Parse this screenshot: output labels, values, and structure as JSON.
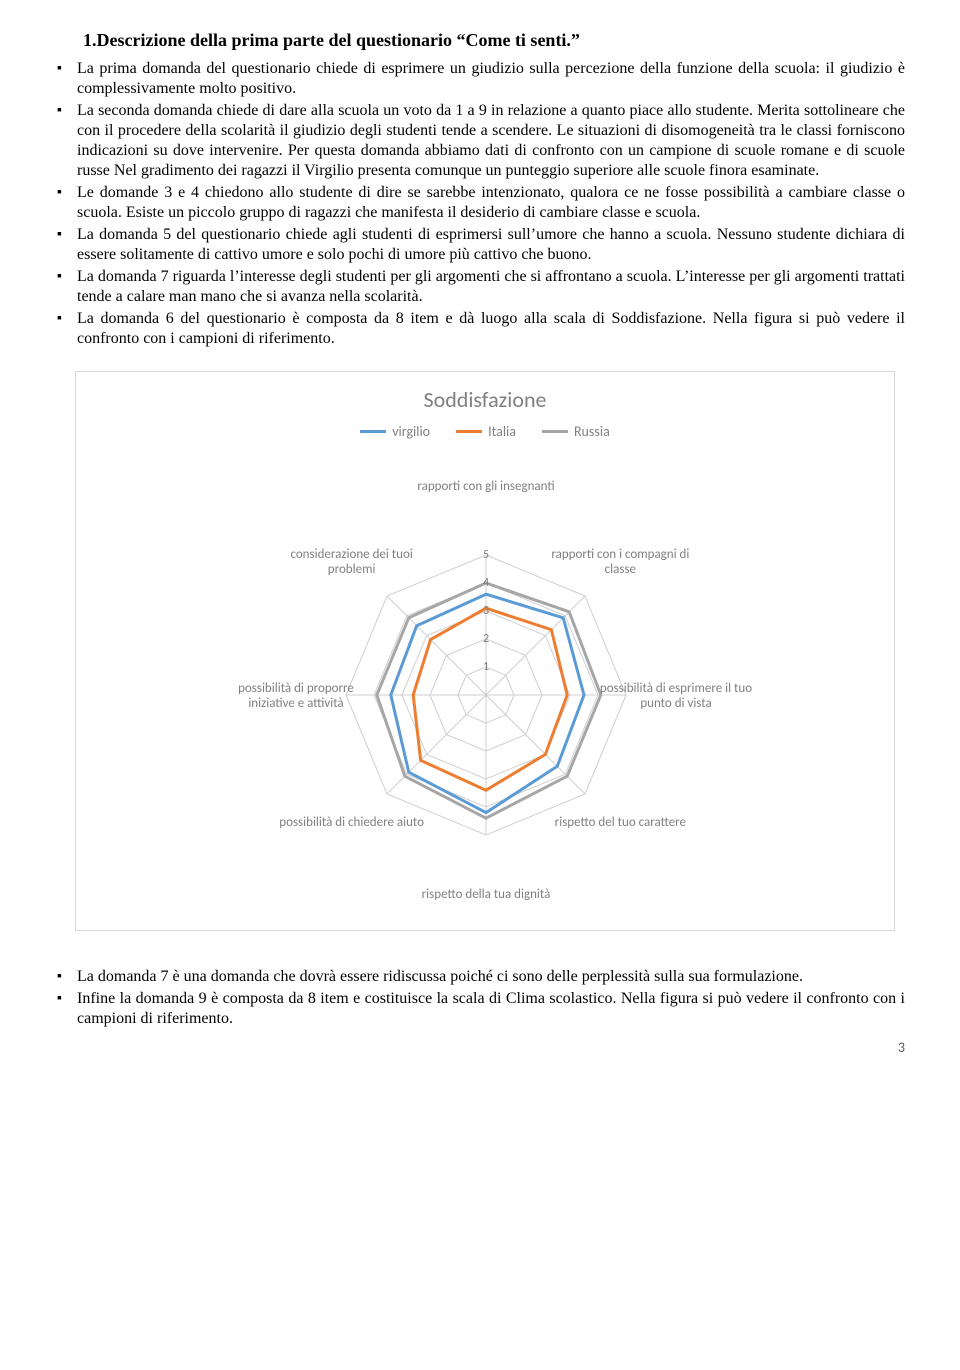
{
  "heading": "1.Descrizione della prima parte del questionario “Come ti senti.”",
  "bullets_top": [
    "La prima domanda del questionario chiede di esprimere un giudizio sulla percezione della funzione della scuola: il giudizio è complessivamente molto positivo.",
    "La seconda domanda chiede di dare alla scuola un voto da 1 a 9 in relazione a quanto piace allo studente. Merita sottolineare che con il procedere della scolarità il giudizio degli studenti tende a scendere. Le situazioni di disomogeneità tra le classi forniscono indicazioni su dove intervenire. Per questa domanda abbiamo dati di confronto con un campione di scuole romane e di scuole russe Nel gradimento dei ragazzi il Virgilio presenta comunque un punteggio superiore alle scuole finora esaminate.",
    "Le domande 3 e 4 chiedono allo studente di dire se sarebbe intenzionato, qualora ce ne fosse possibilità a cambiare classe o scuola. Esiste un piccolo gruppo di ragazzi che manifesta il desiderio di cambiare classe e  scuola.",
    "La domanda 5 del questionario chiede agli studenti di esprimersi sull’umore che hanno a scuola. Nessuno studente dichiara di essere solitamente di cattivo umore e solo pochi di umore più cattivo che buono.",
    "La domanda 7 riguarda l’interesse degli studenti per gli argomenti che si affrontano a scuola. L’interesse per gli argomenti trattati tende a calare man mano che si avanza nella scolarità.",
    "La domanda 6 del questionario è composta da 8 item e dà luogo alla scala di Soddisfazione. Nella figura si può vedere il confronto con i campioni di riferimento."
  ],
  "bullets_bottom": [
    "La domanda 7 è una domanda che dovrà essere ridiscussa poiché ci sono delle perplessità sulla sua formulazione.",
    "Infine la domanda 9 è composta da 8 item e costituisce la scala di Clima scolastico. Nella figura si può vedere il confronto con i campioni di riferimento."
  ],
  "chart": {
    "type": "radar",
    "title": "Soddisfazione",
    "title_color": "#808080",
    "title_fontsize": 22,
    "background_color": "#ffffff",
    "border_color": "#d9d9d9",
    "grid_color": "#cfcfcf",
    "label_color": "#808080",
    "label_fontsize": 13,
    "ring_values": [
      1,
      2,
      3,
      4,
      5
    ],
    "ring_max": 5,
    "axes": [
      "rapporti con gli insegnanti",
      "rapporti con i compagni di classe",
      "possibilità di esprimere il tuo punto di vista",
      "rispetto del tuo carattere",
      "rispetto della tua dignità",
      "possibilità di chiedere aiuto",
      "possibilità di proporre iniziative e attività",
      "considerazione dei tuoi problemi"
    ],
    "series": [
      {
        "name": "virgilio",
        "color": "#5b9bd5",
        "width": 3,
        "values": [
          3.6,
          3.9,
          3.5,
          3.6,
          4.2,
          3.9,
          3.4,
          3.5
        ]
      },
      {
        "name": "Italia",
        "color": "#ed7d31",
        "width": 3,
        "values": [
          3.1,
          3.3,
          2.9,
          3.0,
          3.4,
          3.3,
          2.6,
          2.8
        ]
      },
      {
        "name": "Russia",
        "color": "#a6a6a6",
        "width": 3,
        "values": [
          4.0,
          4.2,
          4.1,
          4.1,
          4.4,
          4.1,
          3.9,
          3.9
        ]
      }
    ]
  },
  "page_number": "3"
}
